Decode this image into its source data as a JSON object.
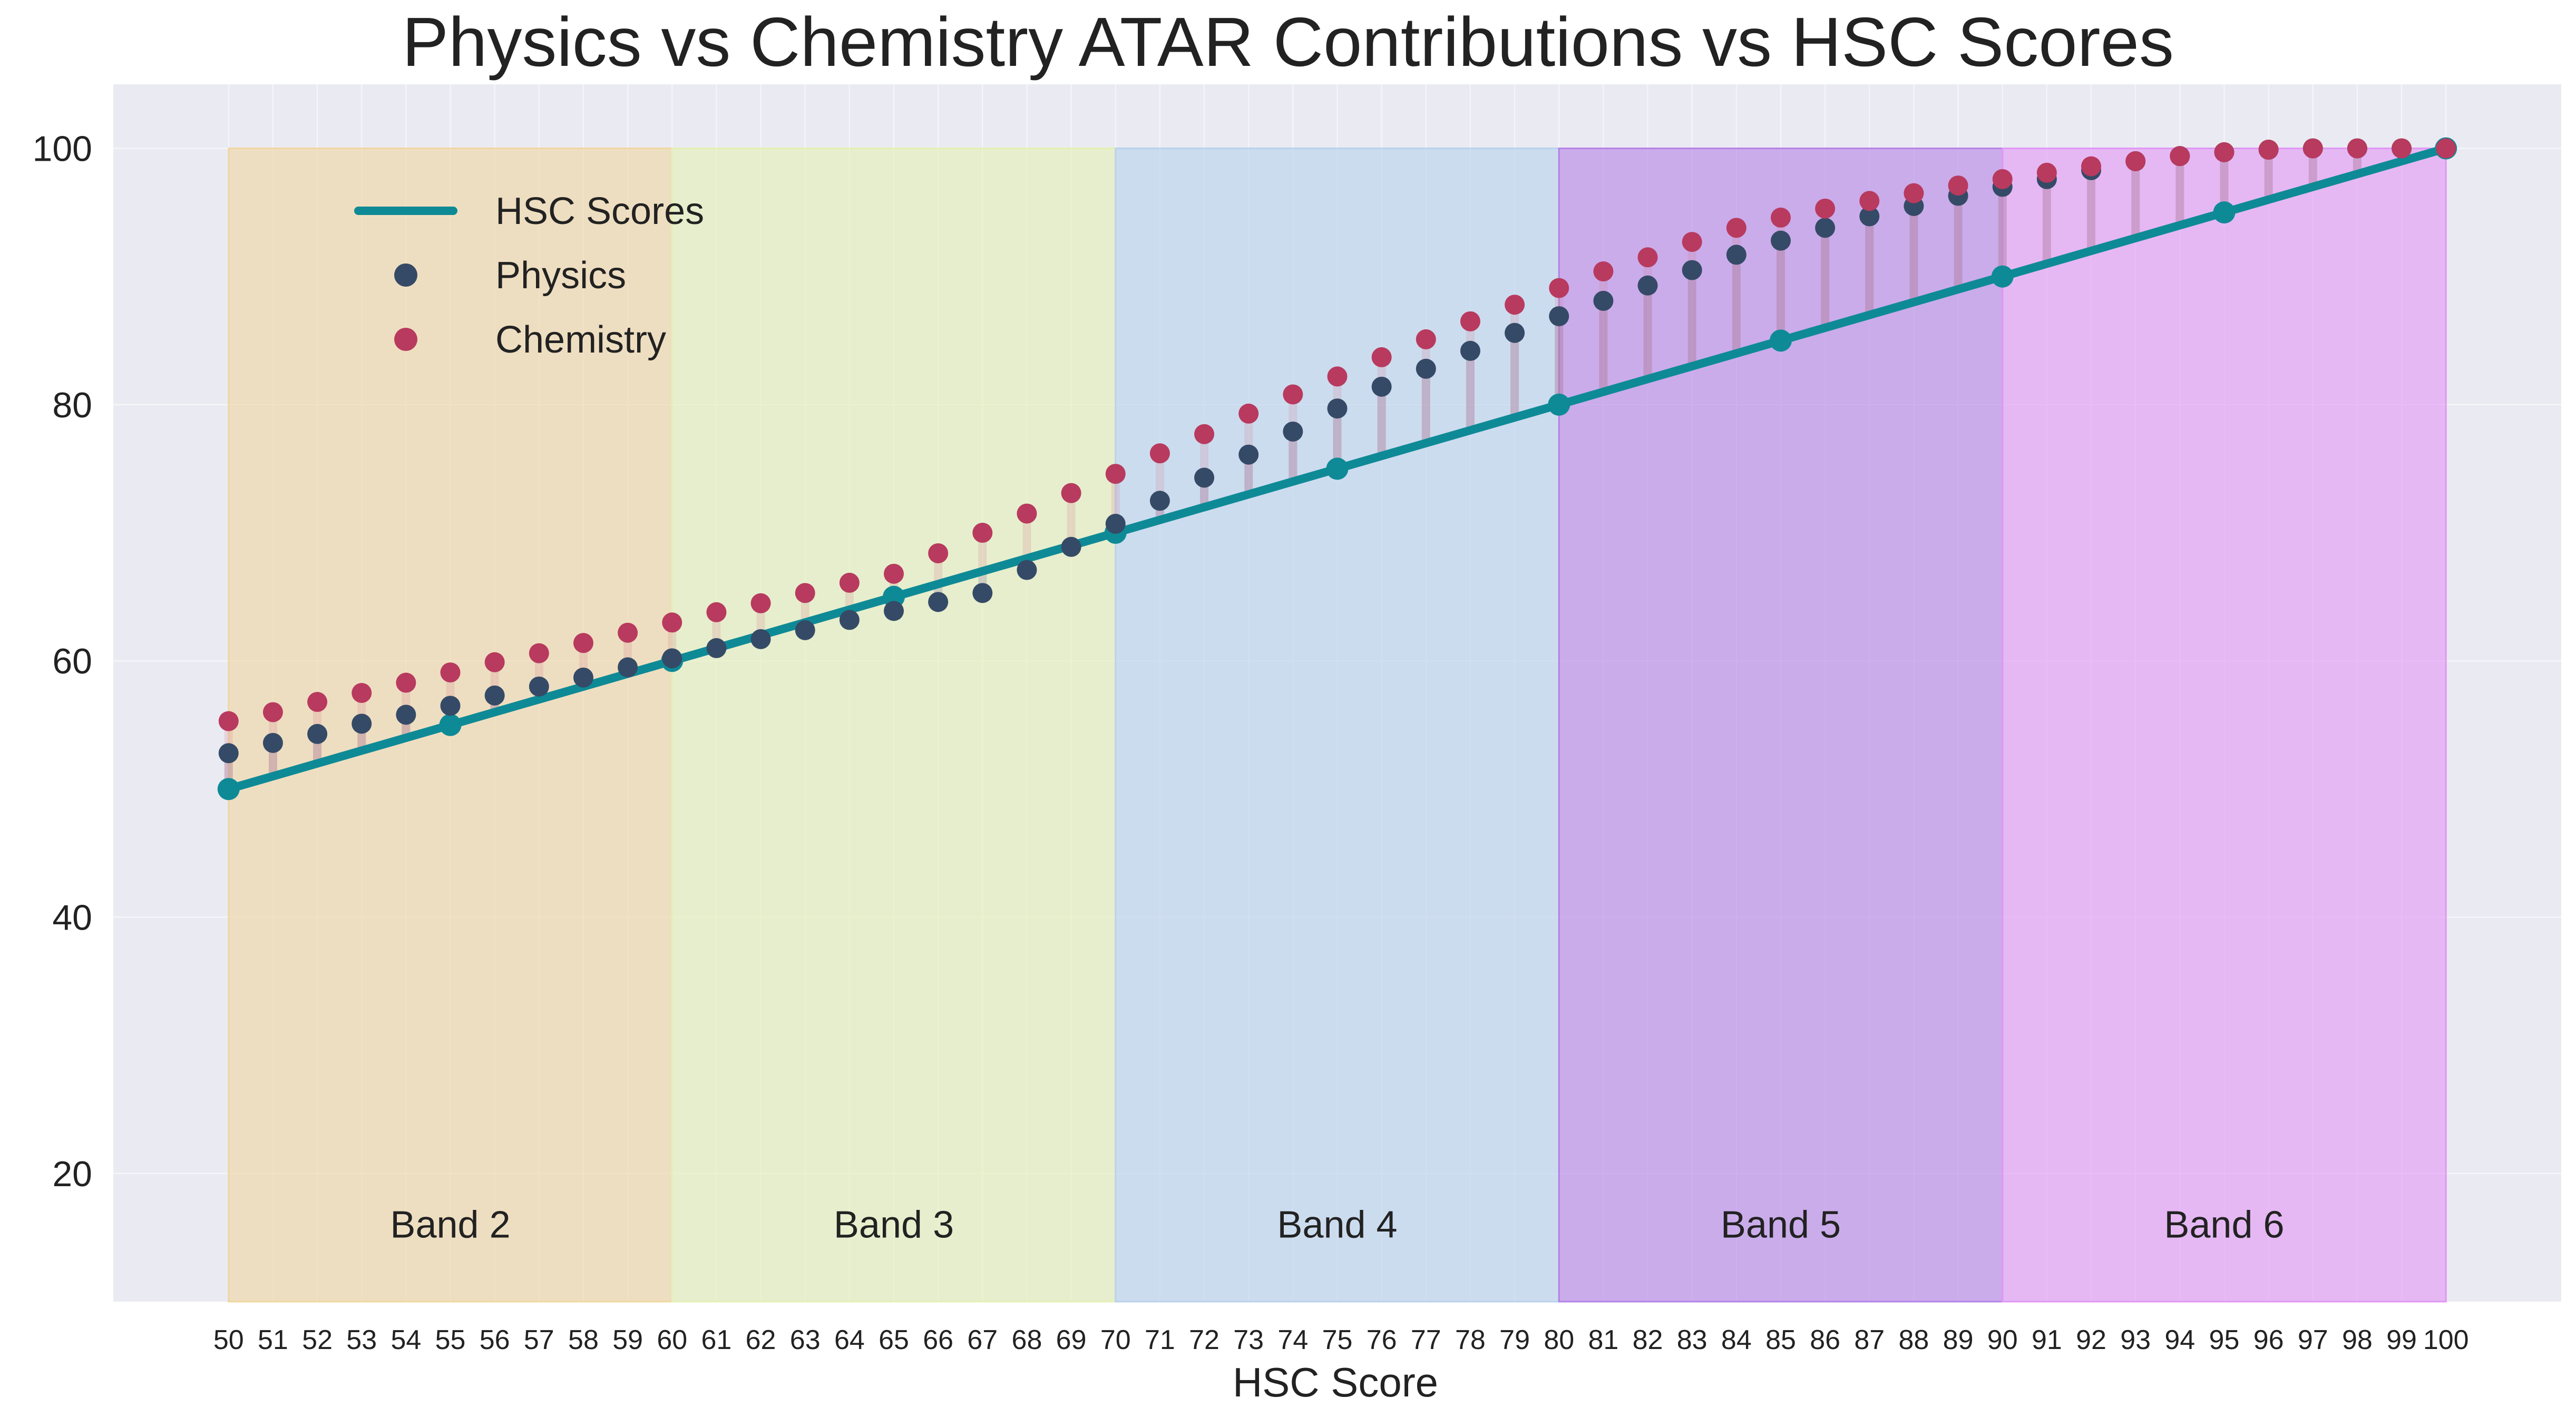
{
  "chart_data": {
    "type": "line",
    "title": "Physics vs Chemistry ATAR Contributions vs HSC Scores",
    "xlabel": "HSC Score",
    "ylabel": "",
    "xlim": [
      47.4,
      102.6
    ],
    "ylim": [
      10,
      105
    ],
    "yticks": [
      20,
      40,
      60,
      80,
      100
    ],
    "x": [
      50,
      51,
      52,
      53,
      54,
      55,
      56,
      57,
      58,
      59,
      60,
      61,
      62,
      63,
      64,
      65,
      66,
      67,
      68,
      69,
      70,
      71,
      72,
      73,
      74,
      75,
      76,
      77,
      78,
      79,
      80,
      81,
      82,
      83,
      84,
      85,
      86,
      87,
      88,
      89,
      90,
      91,
      92,
      93,
      94,
      95,
      96,
      97,
      98,
      99,
      100
    ],
    "xtick_labels": [
      "50",
      "51",
      "52",
      "53",
      "54",
      "55",
      "56",
      "57",
      "58",
      "59",
      "60",
      "61",
      "62",
      "63",
      "64",
      "65",
      "66",
      "67",
      "68",
      "69",
      "70",
      "71",
      "72",
      "73",
      "74",
      "75",
      "76",
      "77",
      "78",
      "79",
      "80",
      "81",
      "82",
      "83",
      "84",
      "85",
      "86",
      "87",
      "88",
      "89",
      "90",
      "91",
      "92",
      "93",
      "94",
      "95",
      "96",
      "97",
      "98",
      "99",
      "100"
    ],
    "series": [
      {
        "name": "HSC Scores",
        "kind": "line",
        "color": "#0e8a96",
        "x": [
          50,
          55,
          60,
          65,
          70,
          75,
          80,
          85,
          90,
          95,
          100
        ],
        "values": [
          50,
          55,
          60,
          65,
          70,
          75,
          80,
          85,
          90,
          95,
          100
        ]
      },
      {
        "name": "Physics",
        "kind": "scatter",
        "color": "#354a66",
        "values": [
          52.8,
          53.6,
          54.3,
          55.1,
          55.8,
          56.5,
          57.3,
          58.0,
          58.7,
          59.5,
          60.2,
          61.0,
          61.7,
          62.4,
          63.2,
          63.9,
          64.6,
          65.3,
          67.1,
          68.9,
          70.7,
          72.5,
          74.3,
          76.1,
          77.9,
          79.7,
          81.4,
          82.8,
          84.2,
          85.6,
          86.9,
          88.1,
          89.3,
          90.5,
          91.7,
          92.8,
          93.8,
          94.7,
          95.5,
          96.3,
          97.0,
          97.6,
          98.3,
          99.0,
          99.4,
          99.7,
          99.9,
          100.0,
          100.0,
          100.0,
          100.0
        ]
      },
      {
        "name": "Chemistry",
        "kind": "scatter",
        "color": "#b83a5e",
        "values": [
          55.3,
          56.0,
          56.8,
          57.5,
          58.3,
          59.1,
          59.9,
          60.6,
          61.4,
          62.2,
          63.0,
          63.8,
          64.5,
          65.3,
          66.1,
          66.8,
          68.4,
          70.0,
          71.5,
          73.1,
          74.6,
          76.2,
          77.7,
          79.3,
          80.8,
          82.2,
          83.7,
          85.1,
          86.5,
          87.8,
          89.1,
          90.4,
          91.5,
          92.7,
          93.8,
          94.6,
          95.3,
          95.9,
          96.5,
          97.1,
          97.6,
          98.1,
          98.6,
          99.0,
          99.4,
          99.7,
          99.9,
          100.0,
          100.0,
          100.0,
          100.0
        ]
      }
    ],
    "bands": [
      {
        "label": "Band 2",
        "from": 50,
        "to": 60,
        "color": "#f0d6a0"
      },
      {
        "label": "Band 3",
        "from": 60,
        "to": 70,
        "color": "#e4f0b4"
      },
      {
        "label": "Band 4",
        "from": 70,
        "to": 80,
        "color": "#b8d2ec"
      },
      {
        "label": "Band 5",
        "from": 80,
        "to": 90,
        "color": "#b482e6"
      },
      {
        "label": "Band 6",
        "from": 90,
        "to": 100,
        "color": "#e196f5"
      }
    ],
    "legend": {
      "position": "top-left",
      "entries": [
        "HSC Scores",
        "Physics",
        "Chemistry"
      ]
    },
    "grid": true
  }
}
